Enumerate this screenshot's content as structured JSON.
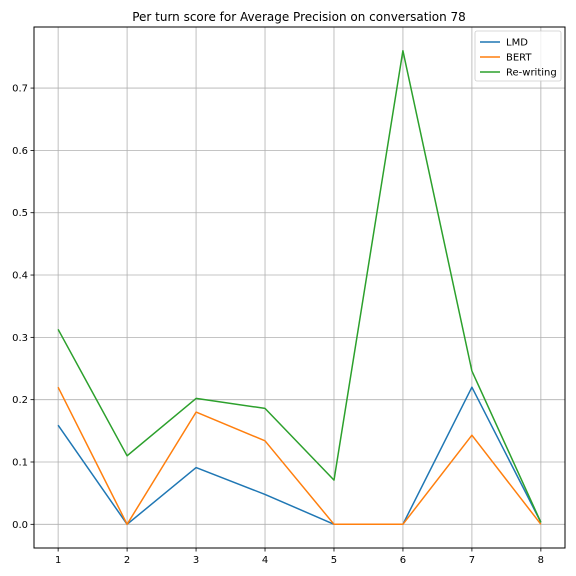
{
  "chart_data": {
    "type": "line",
    "title": "Per turn score for Average Precision on conversation 78",
    "xlabel": "",
    "ylabel": "",
    "x": [
      1,
      2,
      3,
      4,
      5,
      6,
      7,
      8
    ],
    "xlim": [
      0.65,
      8.35
    ],
    "ylim": [
      -0.038,
      0.798
    ],
    "xticks": [
      "1",
      "2",
      "3",
      "4",
      "5",
      "6",
      "7",
      "8"
    ],
    "yticks": [
      "0.0",
      "0.1",
      "0.2",
      "0.3",
      "0.4",
      "0.5",
      "0.6",
      "0.7"
    ],
    "grid": true,
    "legend_position": "top-right",
    "series": [
      {
        "name": "LMD",
        "color": "#1f77b4",
        "values": [
          0.159,
          0.0,
          0.091,
          0.048,
          0.0,
          0.0,
          0.22,
          0.003
        ]
      },
      {
        "name": "BERT",
        "color": "#ff7f0e",
        "values": [
          0.22,
          0.0,
          0.18,
          0.134,
          0.0,
          0.0,
          0.143,
          0.0
        ]
      },
      {
        "name": "Re-writing",
        "color": "#2ca02c",
        "values": [
          0.313,
          0.11,
          0.202,
          0.186,
          0.071,
          0.76,
          0.246,
          0.003
        ]
      }
    ]
  }
}
